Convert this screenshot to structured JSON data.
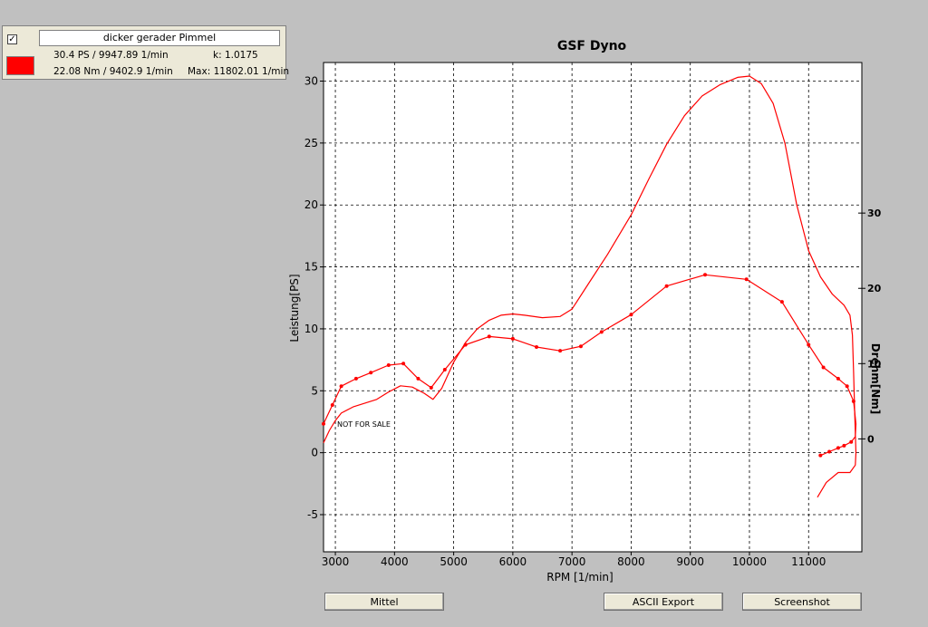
{
  "legend": {
    "checkbox_mark": "✓",
    "run_name": "dicker gerader Pimmel",
    "color": "#ff0000",
    "power_summary": "30.4 PS / 9947.89 1/min",
    "k_value": "k: 1.0175",
    "torque_summary": "22.08 Nm / 9402.9 1/min",
    "max_rpm": "Max: 11802.01 1/min"
  },
  "buttons": {
    "mittel": "Mittel",
    "ascii_export": "ASCII Export",
    "screenshot": "Screenshot"
  },
  "chart_data": {
    "type": "line",
    "title": "GSF Dyno",
    "xlabel": "RPM [1/min]",
    "ylabel": "Leistung[PS]",
    "y2label": "Drehm[Nm]",
    "xlim": [
      2800,
      11900
    ],
    "ylim": [
      -8,
      31.5
    ],
    "y2lim": [
      -15,
      50
    ],
    "grid": true,
    "watermark": "NOT FOR SALE",
    "x_ticks": [
      3000,
      4000,
      5000,
      6000,
      7000,
      8000,
      9000,
      10000,
      11000
    ],
    "y_ticks": [
      -5,
      0,
      5,
      10,
      15,
      20,
      25,
      30
    ],
    "y2_ticks": [
      0,
      10,
      20,
      30
    ],
    "series": [
      {
        "name": "Leistung",
        "axis": "left",
        "color": "#ff0000",
        "points": [
          [
            2800,
            0.8
          ],
          [
            2900,
            1.8
          ],
          [
            3000,
            2.6
          ],
          [
            3100,
            3.2
          ],
          [
            3300,
            3.7
          ],
          [
            3500,
            4.0
          ],
          [
            3700,
            4.3
          ],
          [
            3900,
            4.9
          ],
          [
            4100,
            5.4
          ],
          [
            4300,
            5.3
          ],
          [
            4500,
            4.8
          ],
          [
            4650,
            4.3
          ],
          [
            4800,
            5.2
          ],
          [
            5000,
            7.3
          ],
          [
            5200,
            8.9
          ],
          [
            5400,
            10.0
          ],
          [
            5600,
            10.7
          ],
          [
            5800,
            11.1
          ],
          [
            6000,
            11.2
          ],
          [
            6200,
            11.1
          ],
          [
            6500,
            10.9
          ],
          [
            6800,
            11.0
          ],
          [
            7000,
            11.6
          ],
          [
            7300,
            13.8
          ],
          [
            7600,
            16.0
          ],
          [
            8000,
            19.2
          ],
          [
            8300,
            22.1
          ],
          [
            8600,
            24.9
          ],
          [
            8900,
            27.2
          ],
          [
            9200,
            28.8
          ],
          [
            9500,
            29.7
          ],
          [
            9800,
            30.3
          ],
          [
            10000,
            30.4
          ],
          [
            10200,
            29.8
          ],
          [
            10400,
            28.2
          ],
          [
            10600,
            25.0
          ],
          [
            10800,
            20.0
          ],
          [
            11000,
            16.3
          ],
          [
            11200,
            14.2
          ],
          [
            11400,
            12.8
          ],
          [
            11600,
            11.9
          ],
          [
            11700,
            11.1
          ],
          [
            11740,
            9.5
          ],
          [
            11760,
            6.5
          ],
          [
            11780,
            3.0
          ],
          [
            11800,
            0.0
          ],
          [
            11790,
            -1.0
          ],
          [
            11700,
            -1.6
          ],
          [
            11500,
            -1.6
          ],
          [
            11300,
            -2.4
          ],
          [
            11150,
            -3.6
          ]
        ]
      },
      {
        "name": "Drehmoment",
        "axis": "right",
        "color": "#ff0000",
        "points": [
          [
            2800,
            2.0
          ],
          [
            2950,
            4.5
          ],
          [
            3100,
            7.0
          ],
          [
            3350,
            8.0
          ],
          [
            3600,
            8.8
          ],
          [
            3900,
            9.8
          ],
          [
            4150,
            10.0
          ],
          [
            4400,
            8.0
          ],
          [
            4620,
            6.8
          ],
          [
            4850,
            9.2
          ],
          [
            5200,
            12.5
          ],
          [
            5600,
            13.6
          ],
          [
            6000,
            13.3
          ],
          [
            6400,
            12.2
          ],
          [
            6800,
            11.7
          ],
          [
            7150,
            12.3
          ],
          [
            7500,
            14.2
          ],
          [
            8000,
            16.5
          ],
          [
            8600,
            20.3
          ],
          [
            9250,
            21.8
          ],
          [
            9950,
            21.2
          ],
          [
            10550,
            18.2
          ],
          [
            11000,
            12.5
          ],
          [
            11250,
            9.5
          ],
          [
            11500,
            8.0
          ],
          [
            11650,
            7.0
          ],
          [
            11760,
            5.0
          ],
          [
            11800,
            2.0
          ],
          [
            11790,
            0.3
          ],
          [
            11720,
            -0.4
          ],
          [
            11600,
            -0.9
          ],
          [
            11500,
            -1.2
          ],
          [
            11350,
            -1.7
          ],
          [
            11200,
            -2.2
          ]
        ],
        "markers": [
          [
            2800,
            2.0
          ],
          [
            2950,
            4.5
          ],
          [
            3100,
            7.0
          ],
          [
            3350,
            8.0
          ],
          [
            3600,
            8.8
          ],
          [
            3900,
            9.8
          ],
          [
            4150,
            10.0
          ],
          [
            4400,
            8.0
          ],
          [
            4620,
            6.8
          ],
          [
            4850,
            9.2
          ],
          [
            5200,
            12.5
          ],
          [
            5600,
            13.6
          ],
          [
            6000,
            13.3
          ],
          [
            6400,
            12.2
          ],
          [
            6800,
            11.7
          ],
          [
            7150,
            12.3
          ],
          [
            7500,
            14.2
          ],
          [
            8000,
            16.5
          ],
          [
            8600,
            20.3
          ],
          [
            9250,
            21.8
          ],
          [
            9950,
            21.2
          ],
          [
            10550,
            18.2
          ],
          [
            11000,
            12.5
          ],
          [
            11250,
            9.5
          ],
          [
            11500,
            8.0
          ],
          [
            11650,
            7.0
          ],
          [
            11760,
            5.0
          ],
          [
            11720,
            -0.4
          ],
          [
            11600,
            -0.9
          ],
          [
            11500,
            -1.2
          ],
          [
            11350,
            -1.7
          ],
          [
            11200,
            -2.2
          ]
        ]
      }
    ]
  }
}
